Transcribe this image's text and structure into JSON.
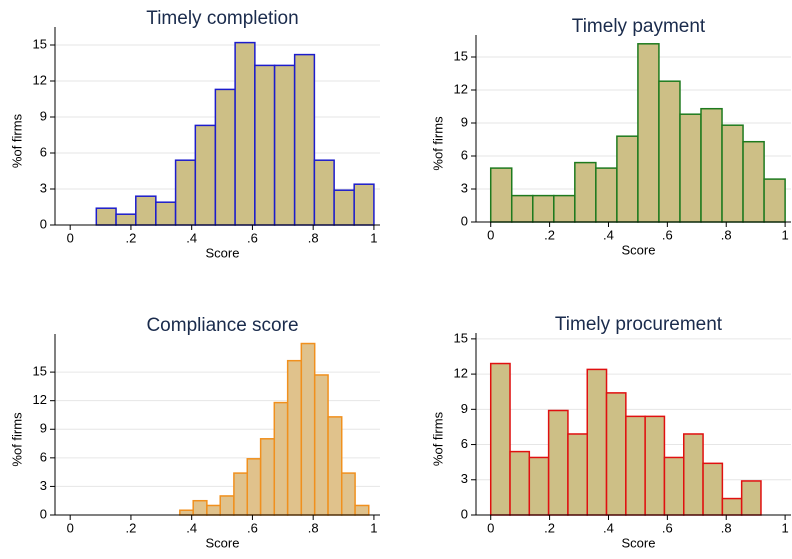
{
  "chart_data": [
    {
      "type": "histogram",
      "title": "Timely completion",
      "x_label": "Score",
      "y_label": "%of firms",
      "bins": [
        0.086,
        0.151,
        0.216,
        0.282,
        0.347,
        0.412,
        0.478,
        0.543,
        0.608,
        0.673,
        0.739,
        0.804,
        0.869,
        0.935,
        1.0
      ],
      "values": [
        1.4,
        0.9,
        2.4,
        1.9,
        5.4,
        8.3,
        11.3,
        15.2,
        13.3,
        13.3,
        14.2,
        5.4,
        2.9,
        3.4
      ],
      "color": "#1c1ccc",
      "fill": "#cdbf86",
      "xlim": [
        -0.05,
        1.02
      ],
      "xticks": [
        0,
        {
          "value": 0.2,
          "label": ".2"
        },
        {
          "value": 0.4,
          "label": ".4"
        },
        {
          "value": 0.6,
          "label": ".6"
        },
        {
          "value": 0.8,
          "label": ".8"
        },
        1
      ],
      "ylim": [
        0,
        16.5
      ],
      "yticks": [
        0,
        3,
        6,
        9,
        12,
        15
      ],
      "grid": true
    },
    {
      "type": "histogram",
      "title": "Timely payment",
      "x_label": "Score",
      "y_label": "%of firms",
      "bins": [
        0,
        0.0714,
        0.1429,
        0.2143,
        0.2857,
        0.3571,
        0.4286,
        0.5,
        0.5714,
        0.6429,
        0.7143,
        0.7857,
        0.8571,
        0.9286,
        1.0
      ],
      "values": [
        4.9,
        2.4,
        2.4,
        2.4,
        5.4,
        4.9,
        7.8,
        16.2,
        12.8,
        9.8,
        10.3,
        8.8,
        7.3,
        3.9
      ],
      "color": "#1e7a1e",
      "fill": "#cdbf86",
      "xlim": [
        -0.05,
        1.02
      ],
      "xticks": [
        0,
        {
          "value": 0.2,
          "label": ".2"
        },
        {
          "value": 0.4,
          "label": ".4"
        },
        {
          "value": 0.6,
          "label": ".6"
        },
        {
          "value": 0.8,
          "label": ".8"
        },
        1
      ],
      "ylim": [
        0,
        17
      ],
      "yticks": [
        0,
        3,
        6,
        9,
        12,
        15
      ],
      "grid": true
    },
    {
      "type": "histogram",
      "title": "Compliance score",
      "x_label": "Score",
      "y_label": "%of firms",
      "bins": [
        0.361,
        0.405,
        0.45,
        0.494,
        0.539,
        0.583,
        0.627,
        0.672,
        0.716,
        0.761,
        0.805,
        0.849,
        0.894,
        0.938,
        0.983
      ],
      "values": [
        0.5,
        1.5,
        1.0,
        2.0,
        4.4,
        5.9,
        8.0,
        11.8,
        16.2,
        18.0,
        14.7,
        10.3,
        4.4,
        1.0
      ],
      "color": "#f0901e",
      "fill": "#e0c28c",
      "xlim": [
        -0.05,
        1.02
      ],
      "xticks": [
        0,
        {
          "value": 0.2,
          "label": ".2"
        },
        {
          "value": 0.4,
          "label": ".4"
        },
        {
          "value": 0.6,
          "label": ".6"
        },
        {
          "value": 0.8,
          "label": ".8"
        },
        1
      ],
      "ylim": [
        0,
        19
      ],
      "yticks": [
        0,
        3,
        6,
        9,
        12,
        15
      ],
      "grid": true
    },
    {
      "type": "histogram",
      "title": "Timely procurement",
      "x_label": "Score",
      "y_label": "%of firms",
      "bins": [
        0,
        0.0656,
        0.1311,
        0.1967,
        0.2623,
        0.3279,
        0.3934,
        0.459,
        0.5246,
        0.5901,
        0.6557,
        0.7213,
        0.7869,
        0.8524,
        0.918
      ],
      "values": [
        12.9,
        5.4,
        4.9,
        8.9,
        6.9,
        12.4,
        10.4,
        8.4,
        8.4,
        4.9,
        6.9,
        4.4,
        1.4,
        2.9
      ],
      "color": "#e01010",
      "fill": "#cdbf86",
      "xlim": [
        -0.05,
        1.02
      ],
      "xticks": [
        0,
        {
          "value": 0.2,
          "label": ".2"
        },
        {
          "value": 0.4,
          "label": ".4"
        },
        {
          "value": 0.6,
          "label": ".6"
        },
        {
          "value": 0.8,
          "label": ".8"
        },
        1
      ],
      "ylim": [
        0,
        15.5
      ],
      "yticks": [
        0,
        3,
        6,
        9,
        12,
        15
      ],
      "grid": true
    }
  ]
}
